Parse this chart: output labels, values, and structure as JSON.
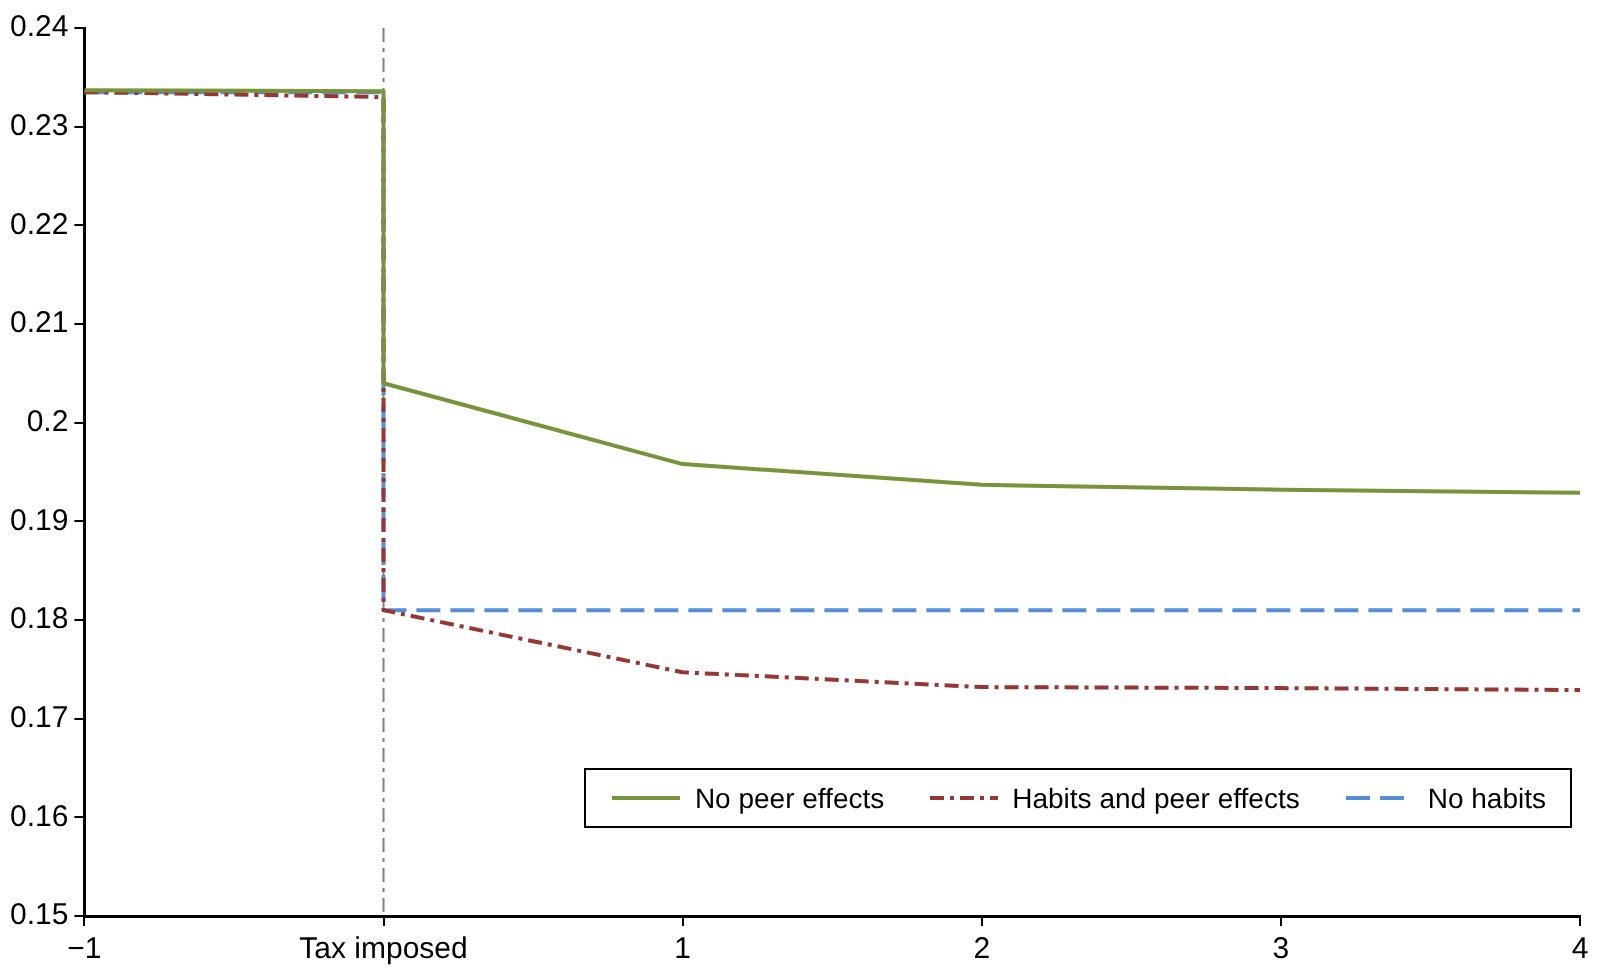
{
  "chart_data": {
    "type": "line",
    "x": [
      -1,
      0,
      0,
      1,
      2,
      3,
      4
    ],
    "xlim": [
      -1,
      4
    ],
    "ylim": [
      0.15,
      0.24
    ],
    "xticks": [
      {
        "value": -1,
        "label": "−1"
      },
      {
        "value": 0,
        "label": "Tax imposed"
      },
      1,
      2,
      3,
      4
    ],
    "yticks": [
      0.15,
      0.16,
      0.17,
      0.18,
      0.19,
      {
        "value": 0.2,
        "label": "0.2"
      },
      0.21,
      0.22,
      0.23,
      0.24
    ],
    "series": [
      {
        "name": "No peer effects",
        "color": "#77933c",
        "line_style": "solid",
        "values": [
          0.2337,
          0.2336,
          0.204,
          0.1958,
          0.1937,
          0.1932,
          0.1929
        ]
      },
      {
        "name": "Habits and peer effects",
        "color": "#953735",
        "line_style": "dotted",
        "values": [
          0.2335,
          0.233,
          0.181,
          0.1747,
          0.1732,
          0.1731,
          0.1729
        ]
      },
      {
        "name": "No habits",
        "color": "#558ed5",
        "line_style": "dashed",
        "x": [
          -1,
          0,
          0,
          4
        ],
        "values": [
          0.2335,
          0.2335,
          0.181,
          0.181
        ]
      }
    ],
    "ref_lines": [
      {
        "axis": "x",
        "value": 0,
        "color": "#808080",
        "line_style": "dotted"
      }
    ],
    "grid": false,
    "legend": "bottom right",
    "marker": "none"
  }
}
